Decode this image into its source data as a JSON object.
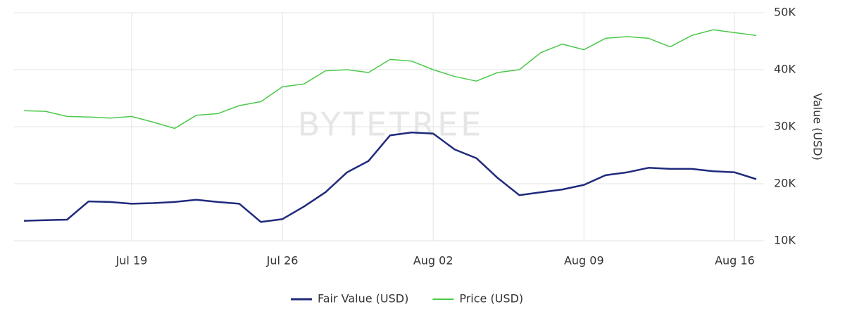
{
  "chart_data": {
    "type": "line",
    "watermark": "BYTETREE",
    "y_label": "Value (USD)",
    "x": [
      "Jul 14",
      "Jul 15",
      "Jul 16",
      "Jul 17",
      "Jul 18",
      "Jul 19",
      "Jul 20",
      "Jul 21",
      "Jul 22",
      "Jul 23",
      "Jul 24",
      "Jul 25",
      "Jul 26",
      "Jul 27",
      "Jul 28",
      "Jul 29",
      "Jul 30",
      "Jul 31",
      "Aug 01",
      "Aug 02",
      "Aug 03",
      "Aug 04",
      "Aug 05",
      "Aug 06",
      "Aug 07",
      "Aug 08",
      "Aug 09",
      "Aug 10",
      "Aug 11",
      "Aug 12",
      "Aug 13",
      "Aug 14",
      "Aug 15",
      "Aug 16",
      "Aug 17"
    ],
    "xticks": [
      "Jul 19",
      "Jul 26",
      "Aug 02",
      "Aug 09",
      "Aug 16"
    ],
    "ylim": [
      10000,
      50000
    ],
    "yticks": [
      {
        "value": 10000,
        "label": "10K"
      },
      {
        "value": 20000,
        "label": "20K"
      },
      {
        "value": 30000,
        "label": "30K"
      },
      {
        "value": 40000,
        "label": "40K"
      },
      {
        "value": 50000,
        "label": "50K"
      }
    ],
    "grid": true,
    "legend": "bottom",
    "series": [
      {
        "name": "Fair Value (USD)",
        "color": "#1f2a7c",
        "width": 2.5,
        "values": [
          13500,
          13600,
          13700,
          16900,
          16800,
          16500,
          16600,
          16800,
          17200,
          16800,
          16500,
          13300,
          13800,
          16000,
          18500,
          22000,
          24000,
          28500,
          29000,
          28800,
          26000,
          24500,
          21000,
          18000,
          18500,
          19000,
          19800,
          21500,
          22000,
          22800,
          22600,
          22600,
          22200,
          22000,
          20800
        ]
      },
      {
        "name": "Price (USD)",
        "color": "#4cc94a",
        "width": 1.5,
        "values": [
          32800,
          32700,
          31800,
          31700,
          31500,
          31800,
          30800,
          29700,
          32000,
          32300,
          33700,
          34400,
          37000,
          37500,
          39800,
          40000,
          39500,
          41800,
          41500,
          40000,
          38800,
          38000,
          39500,
          40000,
          43000,
          44500,
          43500,
          45500,
          45800,
          45500,
          44000,
          46000,
          47000,
          46500,
          46000
        ]
      }
    ]
  }
}
